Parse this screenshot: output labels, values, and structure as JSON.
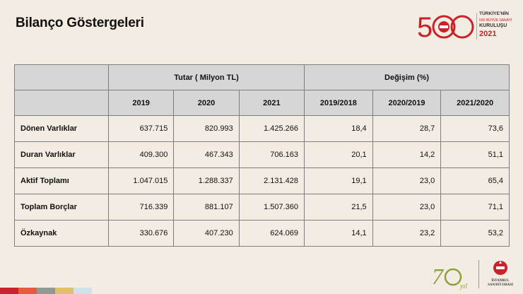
{
  "slide": {
    "title": "Bilanço Göstergeleri"
  },
  "logo_top": {
    "digits": "500",
    "line1": "TÜRKİYE'NİN",
    "line2": "500 BÜYÜK SANAYİ",
    "line3": "KURULUŞU",
    "year": "2021",
    "accent": "#c9222a"
  },
  "table": {
    "group_headers": [
      "Tutar ( Milyon TL)",
      "Değişim (%)"
    ],
    "column_headers": [
      "2019",
      "2020",
      "2021",
      "2019/2018",
      "2020/2019",
      "2021/2020"
    ],
    "rows": [
      {
        "label": "Dönen Varlıklar",
        "values": [
          "637.715",
          "820.993",
          "1.425.266",
          "18,4",
          "28,7",
          "73,6"
        ]
      },
      {
        "label": "Duran Varlıklar",
        "values": [
          "409.300",
          "467.343",
          "706.163",
          "20,1",
          "14,2",
          "51,1"
        ]
      },
      {
        "label": "Aktif Toplamı",
        "values": [
          "1.047.015",
          "1.288.337",
          "2.131.428",
          "19,1",
          "23,0",
          "65,4"
        ]
      },
      {
        "label": "Toplam Borçlar",
        "values": [
          "716.339",
          "881.107",
          "1.507.360",
          "21,5",
          "23,0",
          "71,1"
        ]
      },
      {
        "label": "Özkaynak",
        "values": [
          "330.676",
          "407.230",
          "624.069",
          "14,1",
          "23,2",
          "53,2"
        ]
      }
    ]
  },
  "logo_bottom": {
    "anniversary": "70",
    "anniversary_word": "yıl",
    "org_line1": "İSTANBUL",
    "org_line2": "SANAYİ ODASI"
  },
  "bottom_bar_colors": [
    "#c9222a",
    "#e85a3c",
    "#8f9a94",
    "#e2c06b",
    "#cfe1e8"
  ]
}
